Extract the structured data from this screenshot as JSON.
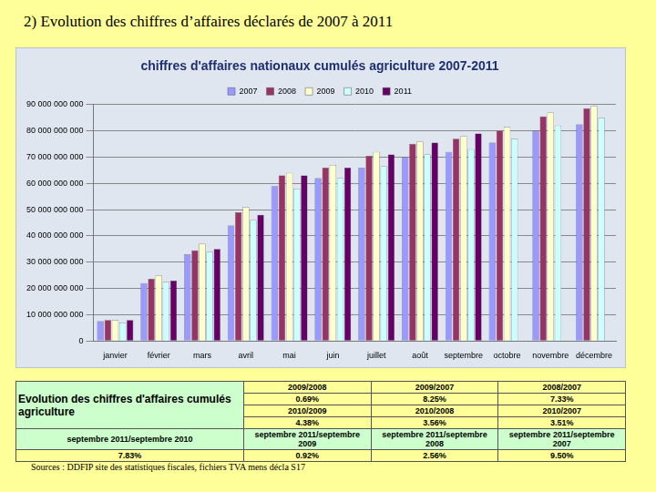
{
  "header": {
    "title": "2) Evolution des chiffres d’affaires déclarés de 2007 à 2011"
  },
  "chart_data": {
    "type": "bar",
    "title": "chiffres d'affaires nationaux cumulés agriculture 2007-2011",
    "categories": [
      "janvier",
      "février",
      "mars",
      "avril",
      "mai",
      "juin",
      "juillet",
      "août",
      "septembre",
      "octobre",
      "novembre",
      "décembre"
    ],
    "series": [
      {
        "name": "2007",
        "color": "#9999ff",
        "values": [
          7500000000,
          22000000000,
          33000000000,
          44000000000,
          59000000000,
          62000000000,
          66000000000,
          70000000000,
          72000000000,
          75500000000,
          80000000000,
          82500000000
        ]
      },
      {
        "name": "2008",
        "color": "#993366",
        "values": [
          8000000000,
          23700000000,
          34500000000,
          49000000000,
          63000000000,
          66000000000,
          70500000000,
          75000000000,
          77000000000,
          80000000000,
          85500000000,
          88500000000
        ]
      },
      {
        "name": "2009",
        "color": "#ffffcc",
        "values": [
          8000000000,
          25000000000,
          37000000000,
          51000000000,
          64000000000,
          67000000000,
          72000000000,
          76000000000,
          78000000000,
          81500000000,
          87000000000,
          89500000000
        ]
      },
      {
        "name": "2010",
        "color": "#ccffff",
        "values": [
          7000000000,
          22500000000,
          34000000000,
          46000000000,
          58000000000,
          62000000000,
          66500000000,
          71000000000,
          73000000000,
          77000000000,
          82000000000,
          85000000000
        ]
      },
      {
        "name": "2011",
        "color": "#660066",
        "values": [
          8000000000,
          23000000000,
          35000000000,
          48000000000,
          63000000000,
          66000000000,
          71000000000,
          75500000000,
          79000000000,
          0,
          null,
          null
        ]
      }
    ],
    "ylim": [
      0,
      90000000000
    ],
    "yticks": [
      0,
      {
        "value": 10000000000,
        "label": "10 000 000 000"
      },
      {
        "value": 20000000000,
        "label": "20 000 000 000"
      },
      {
        "value": 30000000000,
        "label": "30 000 000 000"
      },
      {
        "value": 40000000000,
        "label": "40 000 000 000"
      },
      {
        "value": 50000000000,
        "label": "50 000 000 000"
      },
      {
        "value": 60000000000,
        "label": "60 000 000 000"
      },
      {
        "value": 70000000000,
        "label": "70 000 000 000"
      },
      {
        "value": 80000000000,
        "label": "80 000 000 000"
      },
      {
        "value": 90000000000,
        "label": "90 000 000 000"
      }
    ],
    "grid": true,
    "legend": "top"
  },
  "table": {
    "label": "Evolution des chiffres d'affaires cumulés agriculture",
    "rows": [
      [
        "2009/2008",
        "2009/2007",
        "2008/2007"
      ],
      [
        "0.69%",
        "8.25%",
        "7.33%"
      ],
      [
        "2010/2009",
        "2010/2008",
        "2010/2007"
      ],
      [
        "4.38%",
        "3.56%",
        "3.51%"
      ],
      [
        "septembre 2011/septembre 2010",
        "septembre 2011/septembre 2009",
        "septembre 2011/septembre 2008",
        "septembre 2011/septembre 2007"
      ],
      [
        "7.83%",
        "0.92%",
        "2.56%",
        "9.50%"
      ]
    ]
  },
  "source": "Sources : DDFIP site des statistiques fiscales, fichiers TVA mens décla S17"
}
